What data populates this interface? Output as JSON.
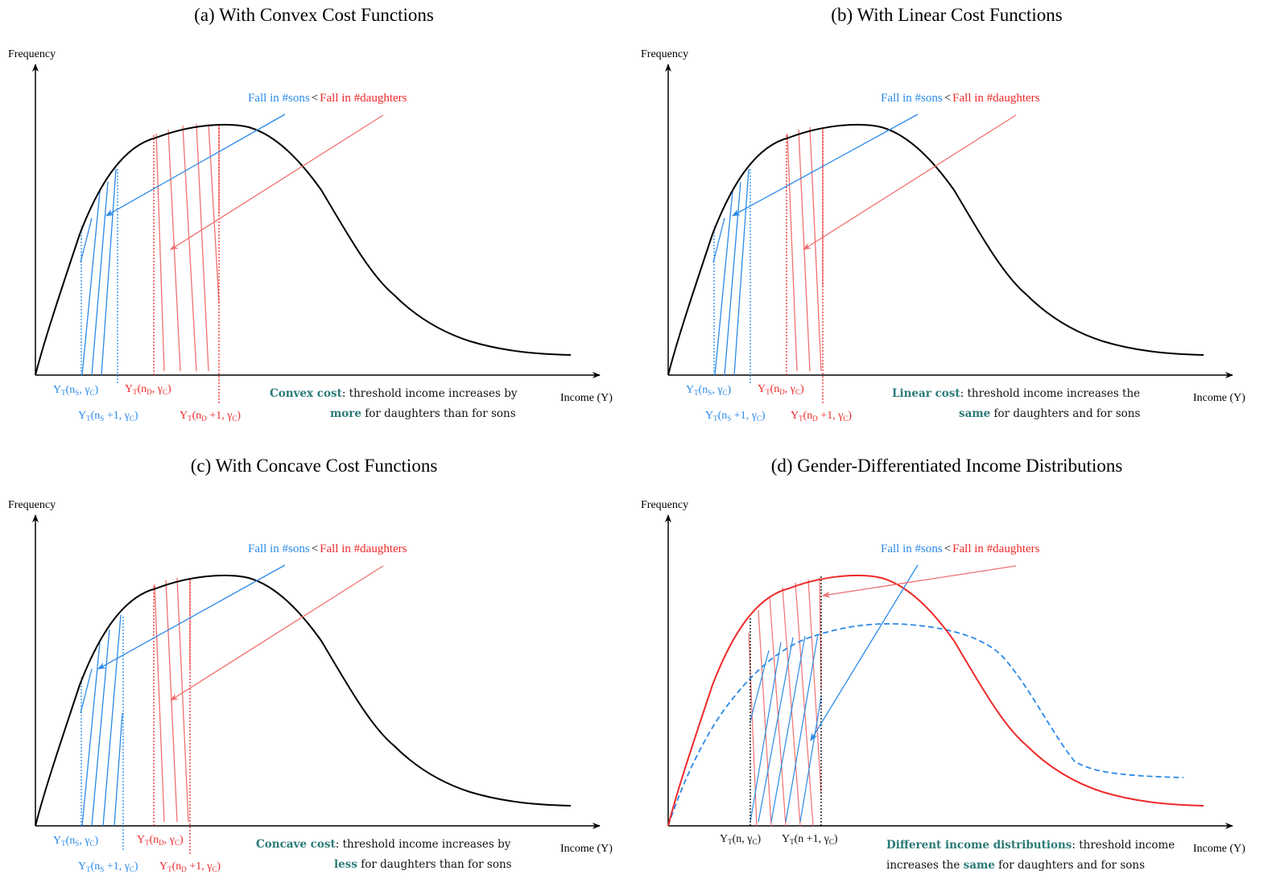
{
  "colors": {
    "blue": "#2a8ae8",
    "red": "#ee2a2a",
    "teal": "#2b7a78",
    "black": "#000000"
  },
  "common": {
    "ylabel": "Frequency",
    "xlabel": "Income (Y)",
    "fall_sons": "Fall in #sons",
    "less_than": "<",
    "fall_daughters": "Fall in #daughters"
  },
  "panels": [
    {
      "title": "(a) With Convex Cost Functions",
      "labels": {
        "ys": "Y_T(n_S, γ_C)",
        "ys1": "Y_T(n_S+1, γ_C)",
        "yd": "Y_T(n_D, γ_C)",
        "yd1": "Y_T(n_D+1, γ_C)"
      },
      "note_bold": "Convex cost",
      "note_rest1": ": threshold income increases by",
      "note_bold2": "more",
      "note_rest2": " for daughters than for sons"
    },
    {
      "title": "(b) With Linear Cost Functions",
      "labels": {
        "ys": "Y_T(n_S, γ_C)",
        "ys1": "Y_T(n_S+1, γ_C)",
        "yd": "Y_T(n_D, γ_C)",
        "yd1": "Y_T(n_D+1, γ_C)"
      },
      "note_bold": "Linear cost",
      "note_rest1": ": threshold income increases the",
      "note_bold2": "same",
      "note_rest2": " for daughters and for sons"
    },
    {
      "title": "(c) With Concave Cost Functions",
      "labels": {
        "ys": "Y_T(n_S, γ_C)",
        "ys1": "Y_T(n_S+1, γ_C)",
        "yd": "Y_T(n_D, γ_C)",
        "yd1": "Y_T(n_D+1, γ_C)"
      },
      "note_bold": "Concave cost",
      "note_rest1": ": threshold income increases by",
      "note_bold2": "less",
      "note_rest2": " for daughters than for sons"
    },
    {
      "title": "(d) Gender-Differentiated Income Distributions",
      "labels": {
        "yn": "Y_T(n, γ_C)",
        "yn1": "Y_T(n+1, γ_C)"
      },
      "note_bold": "Different income distributions",
      "note_rest1": ": threshold income",
      "note_pre2": "increases the ",
      "note_bold2": "same",
      "note_rest2": " for daughters and for sons"
    }
  ]
}
